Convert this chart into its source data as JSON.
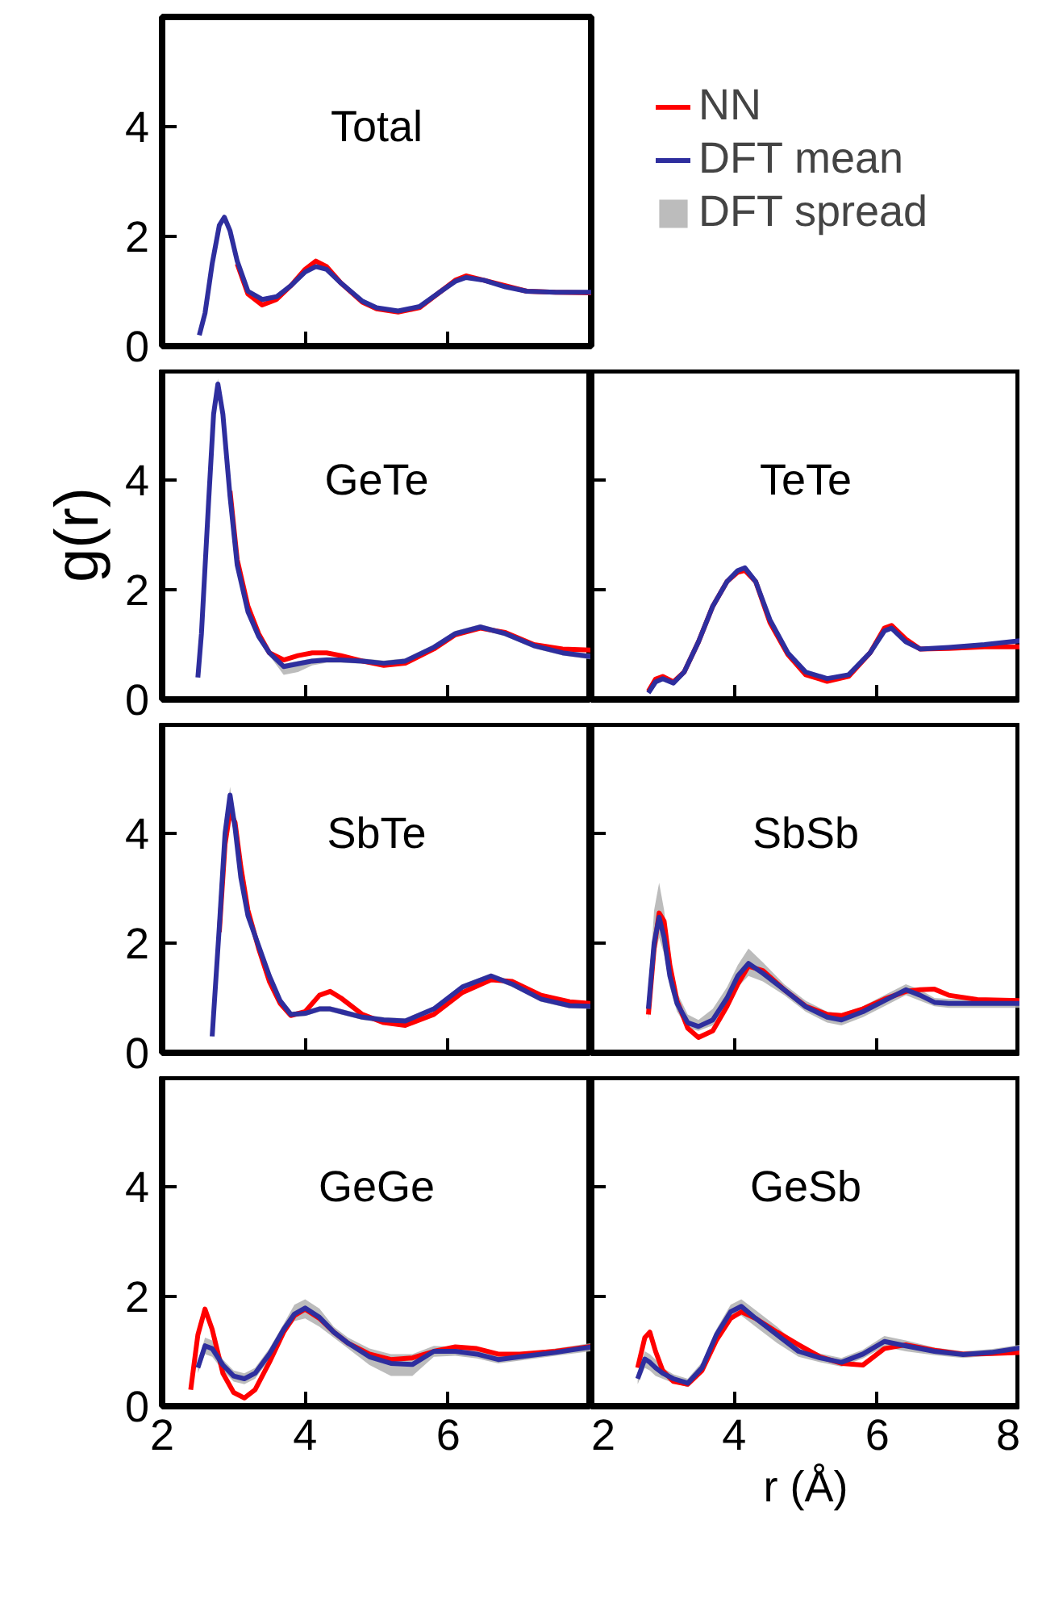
{
  "chart_data": [
    {
      "type": "line",
      "title": "Total",
      "legend": "right",
      "tick_labels": "y",
      "xlim": [
        2,
        8
      ],
      "ylim": [
        0,
        6
      ],
      "xticks": [
        2,
        4,
        6,
        8
      ],
      "yticks": [
        0,
        2,
        4
      ],
      "x": [
        2.52,
        2.6,
        2.7,
        2.8,
        2.87,
        2.95,
        3.05,
        3.2,
        3.4,
        3.6,
        3.8,
        4.0,
        4.15,
        4.3,
        4.5,
        4.8,
        5.0,
        5.3,
        5.6,
        5.9,
        6.1,
        6.25,
        6.5,
        6.8,
        7.1,
        7.5,
        8.0
      ],
      "series": [
        {
          "name": "NN",
          "color": "#ff0000",
          "values": [
            null,
            null,
            null,
            null,
            null,
            null,
            1.5,
            0.95,
            0.75,
            0.85,
            1.1,
            1.4,
            1.55,
            1.45,
            1.15,
            0.8,
            0.68,
            0.62,
            0.7,
            1.0,
            1.2,
            1.28,
            1.2,
            1.1,
            1.0,
            0.98,
            0.97
          ]
        },
        {
          "name": "DFT mean",
          "color": "#2e2e9e",
          "values": [
            0.2,
            0.6,
            1.5,
            2.2,
            2.35,
            2.1,
            1.55,
            1.0,
            0.85,
            0.9,
            1.1,
            1.35,
            1.45,
            1.4,
            1.15,
            0.82,
            0.7,
            0.64,
            0.72,
            1.0,
            1.18,
            1.25,
            1.2,
            1.08,
            1.0,
            0.98,
            0.98
          ]
        },
        {
          "name": "DFT spread",
          "type": "area",
          "color": "#b0b0b0",
          "values": [
            null,
            null,
            null,
            null,
            null,
            null,
            null,
            null,
            null,
            null,
            null,
            null,
            null,
            null,
            null,
            null,
            null,
            null,
            null,
            null,
            null,
            null,
            null,
            null,
            null,
            null,
            null
          ]
        }
      ]
    },
    {
      "type": "line",
      "title": "GeTe",
      "ylabel": "g(r)",
      "tick_labels": "y",
      "xlim": [
        2,
        8
      ],
      "ylim": [
        0,
        6
      ],
      "xticks": [
        2,
        4,
        6,
        8
      ],
      "yticks": [
        0,
        2,
        4
      ],
      "x": [
        2.5,
        2.55,
        2.65,
        2.72,
        2.78,
        2.85,
        2.95,
        3.05,
        3.2,
        3.35,
        3.5,
        3.7,
        3.9,
        4.1,
        4.3,
        4.5,
        4.8,
        5.1,
        5.4,
        5.8,
        6.1,
        6.45,
        6.8,
        7.2,
        7.6,
        8.0
      ],
      "series": [
        {
          "color": "#ff0000",
          "values": [
            null,
            null,
            null,
            null,
            null,
            null,
            3.8,
            2.55,
            1.7,
            1.2,
            0.85,
            0.72,
            0.8,
            0.85,
            0.85,
            0.8,
            0.7,
            0.62,
            0.66,
            0.92,
            1.18,
            1.3,
            1.22,
            1.0,
            0.92,
            0.9
          ]
        },
        {
          "color": "#2e2e9e",
          "values": [
            0.4,
            1.2,
            3.6,
            5.2,
            5.75,
            5.2,
            3.7,
            2.45,
            1.6,
            1.15,
            0.85,
            0.6,
            0.65,
            0.7,
            0.72,
            0.72,
            0.7,
            0.66,
            0.7,
            0.95,
            1.2,
            1.32,
            1.2,
            0.98,
            0.85,
            0.78
          ],
          "lower": [
            null,
            1.1,
            3.5,
            5.1,
            5.65,
            5.1,
            3.6,
            2.4,
            1.55,
            1.1,
            0.8,
            0.45,
            0.5,
            0.62,
            0.67,
            0.67,
            0.65,
            0.61,
            0.65,
            0.9,
            1.15,
            1.27,
            1.15,
            0.93,
            0.8,
            0.73
          ],
          "upper": [
            null,
            1.3,
            3.7,
            5.3,
            5.85,
            5.3,
            3.8,
            2.5,
            1.65,
            1.2,
            0.9,
            0.65,
            0.7,
            0.75,
            0.77,
            0.77,
            0.75,
            0.71,
            0.75,
            1.0,
            1.25,
            1.37,
            1.25,
            1.03,
            0.9,
            0.83
          ]
        }
      ]
    },
    {
      "type": "line",
      "title": "TeTe",
      "tick_labels": false,
      "xlim": [
        2,
        8
      ],
      "ylim": [
        0,
        6
      ],
      "xticks": [
        2,
        4,
        6,
        8
      ],
      "yticks": [
        0,
        2,
        4
      ],
      "x": [
        2.8,
        2.9,
        3.0,
        3.15,
        3.3,
        3.5,
        3.7,
        3.9,
        4.05,
        4.15,
        4.3,
        4.5,
        4.75,
        5.0,
        5.3,
        5.6,
        5.9,
        6.1,
        6.2,
        6.4,
        6.6,
        7.0,
        7.5,
        8.0
      ],
      "series": [
        {
          "color": "#ff0000",
          "values": [
            0.15,
            0.37,
            0.42,
            0.32,
            0.5,
            1.05,
            1.7,
            2.15,
            2.32,
            2.35,
            2.15,
            1.4,
            0.82,
            0.45,
            0.33,
            0.42,
            0.85,
            1.3,
            1.35,
            1.1,
            0.92,
            0.93,
            0.96,
            0.96
          ]
        },
        {
          "color": "#2e2e9e",
          "values": [
            0.12,
            0.32,
            0.38,
            0.3,
            0.5,
            1.05,
            1.7,
            2.15,
            2.35,
            2.4,
            2.15,
            1.45,
            0.85,
            0.5,
            0.38,
            0.45,
            0.85,
            1.25,
            1.3,
            1.05,
            0.92,
            0.95,
            1.0,
            1.07
          ]
        }
      ]
    },
    {
      "type": "line",
      "title": "SbTe",
      "tick_labels": "y",
      "xlim": [
        2,
        8
      ],
      "ylim": [
        0,
        6
      ],
      "xticks": [
        2,
        4,
        6,
        8
      ],
      "yticks": [
        0,
        2,
        4
      ],
      "x": [
        2.7,
        2.8,
        2.88,
        2.95,
        3.02,
        3.1,
        3.2,
        3.35,
        3.5,
        3.65,
        3.8,
        4.0,
        4.2,
        4.35,
        4.5,
        4.8,
        5.1,
        5.4,
        5.8,
        6.2,
        6.6,
        6.9,
        7.3,
        7.7,
        8.0
      ],
      "series": [
        {
          "color": "#ff0000",
          "values": [
            null,
            2.2,
            3.8,
            4.4,
            4.2,
            3.4,
            2.6,
            1.9,
            1.3,
            0.9,
            0.68,
            0.75,
            1.05,
            1.12,
            1.0,
            0.7,
            0.55,
            0.5,
            0.7,
            1.1,
            1.33,
            1.3,
            1.05,
            0.93,
            0.9
          ]
        },
        {
          "color": "#2e2e9e",
          "values": [
            0.3,
            2.3,
            4.0,
            4.7,
            4.1,
            3.2,
            2.5,
            1.95,
            1.4,
            0.95,
            0.7,
            0.72,
            0.8,
            0.8,
            0.75,
            0.65,
            0.6,
            0.58,
            0.8,
            1.2,
            1.4,
            1.25,
            0.98,
            0.86,
            0.85
          ],
          "lower": [
            0.25,
            2.2,
            3.85,
            4.55,
            4.0,
            3.1,
            2.45,
            1.9,
            1.35,
            0.9,
            0.65,
            0.67,
            0.75,
            0.75,
            0.7,
            0.6,
            0.55,
            0.53,
            0.75,
            1.15,
            1.35,
            1.2,
            0.93,
            0.81,
            0.8
          ],
          "upper": [
            0.35,
            2.4,
            4.15,
            4.85,
            4.2,
            3.3,
            2.55,
            2.0,
            1.45,
            1.0,
            0.75,
            0.77,
            0.85,
            0.85,
            0.8,
            0.7,
            0.65,
            0.63,
            0.85,
            1.25,
            1.45,
            1.3,
            1.03,
            0.91,
            0.9
          ]
        }
      ]
    },
    {
      "type": "line",
      "title": "SbSb",
      "tick_labels": false,
      "xlim": [
        2,
        8
      ],
      "ylim": [
        0,
        6
      ],
      "xticks": [
        2,
        4,
        6,
        8
      ],
      "yticks": [
        0,
        2,
        4
      ],
      "x": [
        2.8,
        2.88,
        2.95,
        3.02,
        3.1,
        3.2,
        3.35,
        3.5,
        3.7,
        3.9,
        4.05,
        4.2,
        4.4,
        4.7,
        5.0,
        5.3,
        5.5,
        5.8,
        6.1,
        6.4,
        6.6,
        6.8,
        7.0,
        7.4,
        8.0
      ],
      "series": [
        {
          "color": "#ff0000",
          "values": [
            0.7,
            1.9,
            2.55,
            2.4,
            1.6,
            0.95,
            0.45,
            0.28,
            0.4,
            0.85,
            1.25,
            1.58,
            1.5,
            1.15,
            0.85,
            0.7,
            0.68,
            0.8,
            0.98,
            1.12,
            1.15,
            1.16,
            1.05,
            0.97,
            0.95
          ]
        },
        {
          "color": "#2e2e9e",
          "values": [
            0.8,
            2.0,
            2.47,
            2.1,
            1.4,
            0.9,
            0.55,
            0.48,
            0.6,
            1.0,
            1.4,
            1.63,
            1.45,
            1.15,
            0.84,
            0.65,
            0.6,
            0.75,
            0.95,
            1.15,
            1.05,
            0.92,
            0.9,
            0.9,
            0.9
          ],
          "lower": [
            0.6,
            1.7,
            2.1,
            1.8,
            1.2,
            0.75,
            0.45,
            0.4,
            0.5,
            0.85,
            1.2,
            1.4,
            1.3,
            1.05,
            0.75,
            0.55,
            0.5,
            0.65,
            0.85,
            1.05,
            0.95,
            0.85,
            0.82,
            0.82,
            0.82
          ],
          "upper": [
            1.0,
            2.6,
            3.1,
            2.6,
            1.7,
            1.1,
            0.7,
            0.6,
            0.8,
            1.2,
            1.6,
            1.9,
            1.65,
            1.25,
            0.95,
            0.75,
            0.72,
            0.85,
            1.05,
            1.25,
            1.15,
            1.0,
            0.98,
            0.98,
            0.98
          ]
        }
      ]
    },
    {
      "type": "line",
      "title": "GeGe",
      "xlim": [
        2,
        8
      ],
      "ylim": [
        0,
        6
      ],
      "xticks": [
        2,
        4,
        6
      ],
      "yticks": [
        0,
        2,
        4
      ],
      "x": [
        2.4,
        2.5,
        2.6,
        2.7,
        2.85,
        3.0,
        3.15,
        3.3,
        3.5,
        3.7,
        3.85,
        4.0,
        4.2,
        4.4,
        4.6,
        4.9,
        5.2,
        5.5,
        5.8,
        6.1,
        6.4,
        6.7,
        7.0,
        7.5,
        8.0
      ],
      "series": [
        {
          "color": "#ff0000",
          "values": [
            0.3,
            1.3,
            1.77,
            1.4,
            0.6,
            0.25,
            0.15,
            0.3,
            0.8,
            1.35,
            1.65,
            1.77,
            1.6,
            1.35,
            1.15,
            0.95,
            0.85,
            0.88,
            1.0,
            1.08,
            1.05,
            0.95,
            0.95,
            1.0,
            1.09
          ]
        },
        {
          "color": "#2e2e9e",
          "values": [
            null,
            0.7,
            1.1,
            1.05,
            0.75,
            0.55,
            0.5,
            0.6,
            0.95,
            1.4,
            1.68,
            1.79,
            1.62,
            1.35,
            1.15,
            0.9,
            0.78,
            0.76,
            1.0,
            1.0,
            0.95,
            0.85,
            0.9,
            0.98,
            1.08
          ],
          "lower": [
            null,
            0.6,
            0.95,
            0.9,
            0.65,
            0.45,
            0.4,
            0.5,
            0.85,
            1.3,
            1.55,
            1.6,
            1.45,
            1.25,
            1.05,
            0.75,
            0.55,
            0.55,
            0.9,
            0.92,
            0.87,
            0.78,
            0.83,
            0.92,
            1.0
          ],
          "upper": [
            null,
            0.8,
            1.25,
            1.2,
            0.85,
            0.65,
            0.6,
            0.7,
            1.05,
            1.5,
            1.85,
            1.95,
            1.78,
            1.45,
            1.25,
            1.05,
            0.95,
            0.95,
            1.1,
            1.08,
            1.03,
            0.92,
            0.97,
            1.05,
            1.15
          ]
        }
      ]
    },
    {
      "type": "line",
      "title": "GeSb",
      "xlabel": "r (Å)",
      "tick_labels": "x",
      "xlim": [
        2,
        8
      ],
      "ylim": [
        0,
        6
      ],
      "xticks": [
        2,
        4,
        6,
        8
      ],
      "yticks": [
        0,
        2,
        4
      ],
      "x": [
        2.65,
        2.75,
        2.82,
        2.9,
        3.0,
        3.15,
        3.35,
        3.55,
        3.75,
        3.95,
        4.1,
        4.3,
        4.6,
        4.9,
        5.2,
        5.5,
        5.8,
        6.1,
        6.4,
        6.8,
        7.2,
        7.6,
        8.0
      ],
      "series": [
        {
          "color": "#ff0000",
          "values": [
            0.7,
            1.25,
            1.35,
            1.0,
            0.65,
            0.45,
            0.4,
            0.65,
            1.2,
            1.6,
            1.72,
            1.6,
            1.35,
            1.12,
            0.9,
            0.78,
            0.75,
            1.05,
            1.12,
            1.02,
            0.95,
            0.96,
            0.98
          ]
        },
        {
          "color": "#2e2e9e",
          "values": [
            0.5,
            0.86,
            0.8,
            0.7,
            0.6,
            0.5,
            0.42,
            0.7,
            1.3,
            1.72,
            1.82,
            1.6,
            1.3,
            1.0,
            0.88,
            0.8,
            0.95,
            1.18,
            1.1,
            1.0,
            0.94,
            0.98,
            1.06
          ],
          "lower": [
            0.4,
            0.7,
            0.65,
            0.55,
            0.5,
            0.42,
            0.35,
            0.6,
            1.2,
            1.6,
            1.65,
            1.45,
            1.15,
            0.9,
            0.8,
            0.72,
            0.87,
            1.08,
            1.0,
            0.93,
            0.88,
            0.92,
            1.0
          ],
          "upper": [
            0.6,
            1.0,
            0.95,
            0.85,
            0.7,
            0.58,
            0.5,
            0.8,
            1.4,
            1.85,
            1.95,
            1.75,
            1.45,
            1.1,
            0.96,
            0.88,
            1.03,
            1.28,
            1.2,
            1.07,
            1.0,
            1.04,
            1.12
          ]
        }
      ]
    }
  ]
}
